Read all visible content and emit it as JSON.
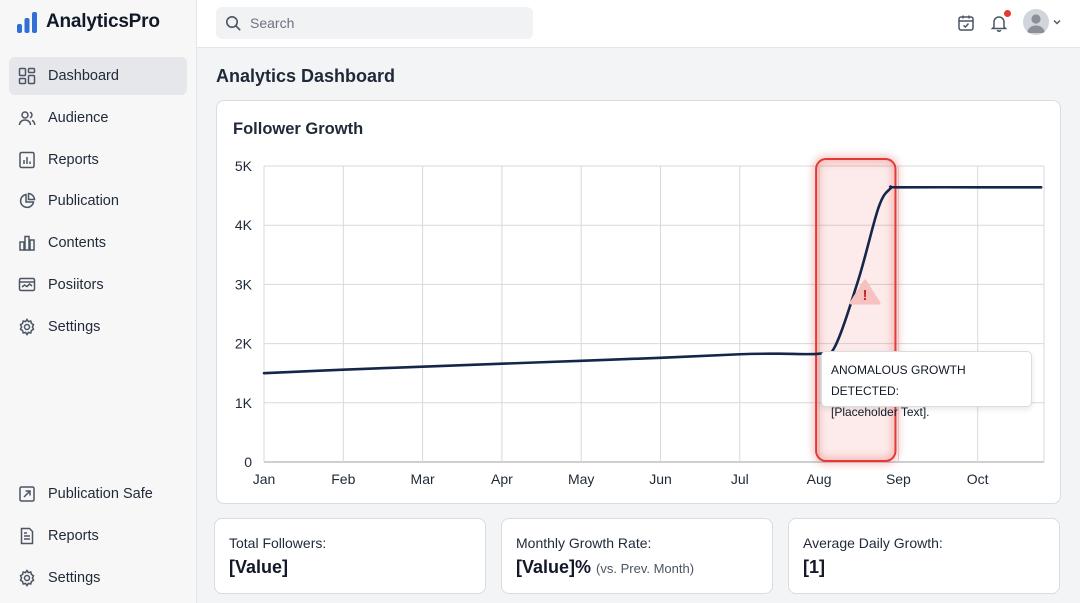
{
  "app": {
    "name": "AnalyticsPro"
  },
  "sidebar": {
    "items": [
      {
        "label": "Dashboard",
        "icon": "dashboard-icon",
        "active": true
      },
      {
        "label": "Audience",
        "icon": "users-icon"
      },
      {
        "label": "Reports",
        "icon": "report-icon"
      },
      {
        "label": "Publication",
        "icon": "pie-chart-icon"
      },
      {
        "label": "Contents",
        "icon": "bar-chart-icon"
      },
      {
        "label": "Posiitors",
        "icon": "monitor-icon"
      },
      {
        "label": "Settings",
        "icon": "gear-icon"
      }
    ],
    "bottom_items": [
      {
        "label": "Publication Safe",
        "icon": "share-icon"
      },
      {
        "label": "Reports",
        "icon": "document-icon"
      },
      {
        "label": "Settings",
        "icon": "gear-icon"
      }
    ]
  },
  "topbar": {
    "search_placeholder": "Search",
    "icons": [
      "calendar-icon",
      "bell-icon",
      "avatar",
      "chevron-down-icon"
    ]
  },
  "main": {
    "page_title": "Analytics Dashboard",
    "chart_title": "Follower Growth",
    "tooltip": {
      "line1": "ANOMALOUS GROWTH DETECTED:",
      "line2": "[Placeholder Text]."
    },
    "stats": [
      {
        "label": "Total Followers:",
        "value": "[Value]",
        "sub": ""
      },
      {
        "label": "Monthly Growth Rate:",
        "value": "[Value]%",
        "sub": "(vs. Prev. Month)"
      },
      {
        "label": "Average Daily Growth:",
        "value": "[1]",
        "sub": ""
      }
    ]
  },
  "colors": {
    "line": "#14264a",
    "highlight": "#e53935",
    "accent_logo": "#2f6fd6"
  },
  "chart_data": {
    "type": "line",
    "title": "Follower Growth",
    "categories": [
      "Jan",
      "Feb",
      "Mar",
      "Apr",
      "May",
      "Jun",
      "Jul",
      "Aug",
      "Sep",
      "Oct"
    ],
    "y_ticks": [
      "0",
      "1K",
      "2K",
      "3K",
      "4K",
      "5K"
    ],
    "ylim": [
      0,
      5000
    ],
    "grid": true,
    "series": [
      {
        "x": [
          0,
          1,
          2,
          3,
          4,
          5,
          6,
          6.5,
          7,
          7.2,
          7.5,
          7.75,
          7.9,
          8,
          9,
          9.8
        ],
        "values": [
          1500,
          1560,
          1610,
          1660,
          1710,
          1760,
          1820,
          1830,
          1830,
          1950,
          3100,
          4300,
          4620,
          4640,
          4640,
          4640
        ]
      }
    ],
    "annotation": {
      "type": "highlight",
      "x_start": 7,
      "x_end": 7.9,
      "icon": "warning-icon"
    }
  }
}
